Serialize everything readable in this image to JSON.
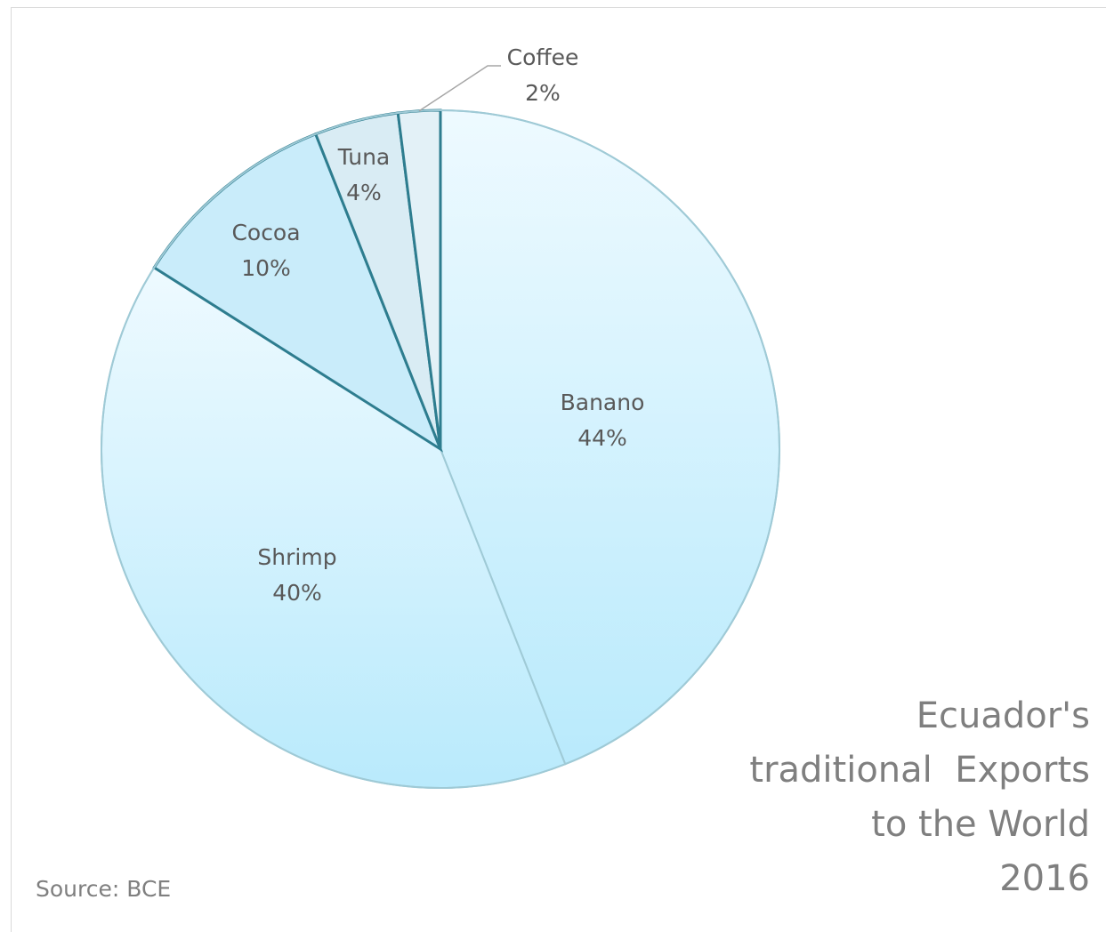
{
  "chart_data": {
    "type": "pie",
    "title_lines": [
      "Ecuador's",
      "traditional  Exports",
      "to the World",
      "2016"
    ],
    "source": "Source: BCE",
    "start_angle": "top (12 o'clock)",
    "direction": "clockwise",
    "slices": [
      {
        "label": "Banano",
        "value": 44,
        "value_label": "44%",
        "color": "#dff4fd"
      },
      {
        "label": "Shrimp",
        "value": 40,
        "value_label": "40%",
        "color": "#d6f1fc"
      },
      {
        "label": "Cocoa",
        "value": 10,
        "value_label": "10%",
        "color": "#c9ecfa"
      },
      {
        "label": "Tuna",
        "value": 4,
        "value_label": "4%",
        "color": "#d9ecf4"
      },
      {
        "label": "Coffee",
        "value": 2,
        "value_label": "2%",
        "color": "#e3f1f7"
      }
    ],
    "colors": {
      "outer_border": "#9fcad6",
      "inner_border": "#2e7d8f",
      "text": "#595959"
    }
  }
}
